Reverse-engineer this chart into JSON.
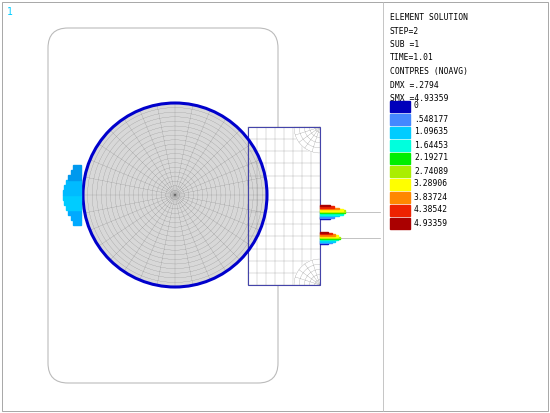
{
  "bg_color": "#ffffff",
  "legend_header_lines": [
    "ELEMENT SOLUTION",
    "STEP=2",
    "SUB =1",
    "TIME=1.01",
    "CONTPRES (NOAVG)",
    "DMX =.2794",
    "SMX =4.93359"
  ],
  "legend_labels": [
    "0",
    ".548177",
    "1.09635",
    "1.64453",
    "2.19271",
    "2.74089",
    "3.28906",
    "3.83724",
    "4.38542",
    "4.93359"
  ],
  "legend_colors": [
    "#0000bb",
    "#4488ff",
    "#00ccff",
    "#00ffdd",
    "#00ee00",
    "#aaee00",
    "#ffff00",
    "#ff8800",
    "#ee2200",
    "#aa0000"
  ],
  "ansys_num_color": "#00ccff",
  "mesh_line_color": "#666666",
  "highlight_blue": "#0000cc",
  "groove_border": "#4444aa",
  "housing_color": "#bbbbbb",
  "contact_left_color": "#00bbff",
  "thin_line_color": "#aaaaaa"
}
